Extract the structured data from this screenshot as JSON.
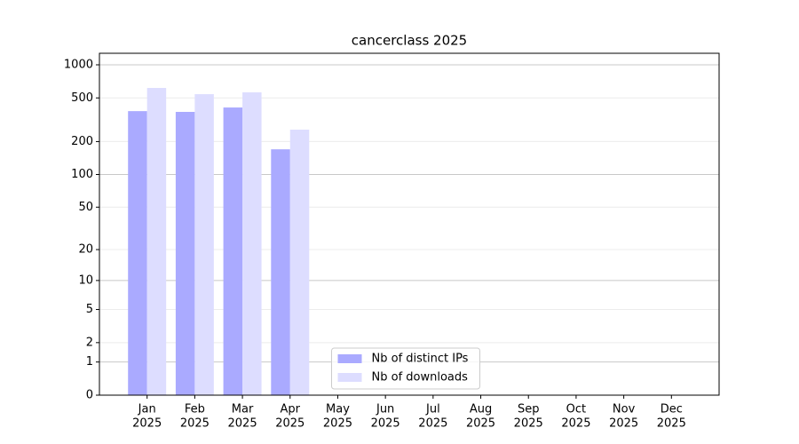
{
  "chart_data": {
    "type": "bar",
    "title": "cancerclass 2025",
    "categories": [
      [
        "Jan",
        "2025"
      ],
      [
        "Feb",
        "2025"
      ],
      [
        "Mar",
        "2025"
      ],
      [
        "Apr",
        "2025"
      ],
      [
        "May",
        "2025"
      ],
      [
        "Jun",
        "2025"
      ],
      [
        "Jul",
        "2025"
      ],
      [
        "Aug",
        "2025"
      ],
      [
        "Sep",
        "2025"
      ],
      [
        "Oct",
        "2025"
      ],
      [
        "Nov",
        "2025"
      ],
      [
        "Dec",
        "2025"
      ]
    ],
    "series": [
      {
        "name": "Nb of distinct IPs",
        "color": "#aaaaff",
        "values": [
          379,
          373,
          409,
          170,
          0,
          0,
          0,
          0,
          0,
          0,
          0,
          0
        ]
      },
      {
        "name": "Nb of downloads",
        "color": "#ddddff",
        "values": [
          616,
          541,
          562,
          257,
          0,
          0,
          0,
          0,
          0,
          0,
          0,
          0
        ]
      }
    ],
    "yscale": "log1p",
    "ylim": [
      0,
      1273
    ],
    "yticks": [
      0,
      1,
      2,
      5,
      10,
      20,
      50,
      100,
      200,
      500,
      1000
    ],
    "grid": true,
    "legend": "lower center"
  }
}
